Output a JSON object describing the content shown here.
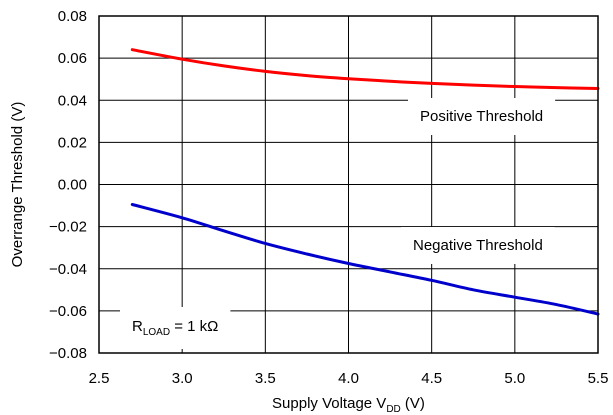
{
  "chart_data": {
    "type": "line",
    "xlabel": {
      "prefix": "Supply Voltage V",
      "sub": "DD",
      "suffix": " (V)"
    },
    "ylabel": "Overrange Threshold (V)",
    "xlim": [
      2.5,
      5.5
    ],
    "ylim": [
      -0.08,
      0.08
    ],
    "x_ticks": [
      2.5,
      3.0,
      3.5,
      4.0,
      4.5,
      5.0,
      5.5
    ],
    "x_tick_labels": [
      "2.5",
      "3.0",
      "3.5",
      "4.0",
      "4.5",
      "5.0",
      "5.5"
    ],
    "y_ticks": [
      0.08,
      0.06,
      0.04,
      0.02,
      0.0,
      -0.02,
      -0.04,
      -0.06,
      -0.08
    ],
    "y_tick_labels": [
      "0.08",
      "0.06",
      "0.04",
      "0.02",
      "0.00",
      "−0.02",
      "−0.04",
      "−0.06",
      "−0.08"
    ],
    "grid": true,
    "series": [
      {
        "name": "Positive Threshold",
        "color": "#ff0000",
        "x": [
          2.7,
          3.0,
          3.25,
          3.5,
          3.75,
          4.0,
          4.25,
          4.5,
          4.75,
          5.0,
          5.25,
          5.5
        ],
        "y": [
          0.064,
          0.0595,
          0.0563,
          0.0537,
          0.0517,
          0.0502,
          0.049,
          0.048,
          0.0472,
          0.0465,
          0.046,
          0.0456
        ]
      },
      {
        "name": "Negative Threshold",
        "color": "#0000cc",
        "x": [
          2.7,
          3.0,
          3.25,
          3.5,
          3.75,
          4.0,
          4.25,
          4.5,
          4.75,
          5.0,
          5.25,
          5.5
        ],
        "y": [
          -0.0095,
          -0.0158,
          -0.022,
          -0.028,
          -0.033,
          -0.0375,
          -0.0415,
          -0.0455,
          -0.05,
          -0.0535,
          -0.057,
          -0.0615
        ]
      }
    ],
    "annotation": {
      "prefix": "R",
      "sub": "LOAD",
      "suffix": " = 1 kΩ"
    }
  }
}
